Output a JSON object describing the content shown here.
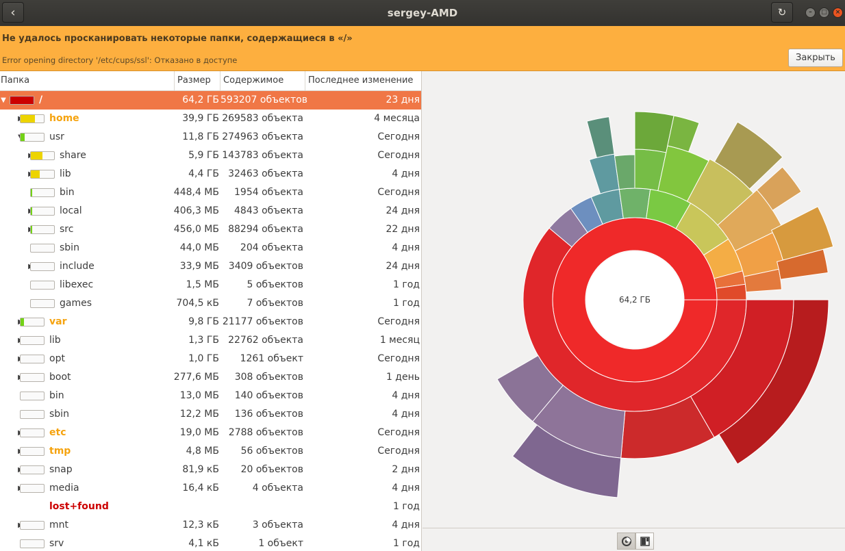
{
  "window": {
    "title": "sergey-AMD"
  },
  "infobar": {
    "message": "Не удалось просканировать некоторые папки, содержащиеся в «/»",
    "detail": "Error opening directory '/etc/cups/ssl': Отказано в доступе",
    "close_label": "Закрыть"
  },
  "columns": {
    "folder": "Папка",
    "size": "Размер",
    "contents": "Содержимое",
    "modified": "Последнее изменение"
  },
  "rows": [
    {
      "name": "/",
      "size": "64,2 ГБ",
      "contents": "593207 объектов",
      "modified": "23 дня",
      "level": 0,
      "expander": "open",
      "fill": 1.0,
      "color": "#cc0000",
      "bold": true,
      "text_color": "#ffffff",
      "selected": true
    },
    {
      "name": "home",
      "size": "39,9 ГБ",
      "contents": "269583 объекта",
      "modified": "4 месяца",
      "level": 1,
      "expander": "closed",
      "fill": 0.62,
      "color": "#edd400",
      "bold": true,
      "text_color": "#f5a30f"
    },
    {
      "name": "usr",
      "size": "11,8 ГБ",
      "contents": "274963 объекта",
      "modified": "Сегодня",
      "level": 1,
      "expander": "open",
      "fill": 0.18,
      "color": "#73d216",
      "bold": false,
      "text_color": "#3c3c3c"
    },
    {
      "name": "share",
      "size": "5,9 ГБ",
      "contents": "143783 объекта",
      "modified": "Сегодня",
      "level": 2,
      "expander": "closed",
      "fill": 0.5,
      "color": "#edd400",
      "bold": false,
      "text_color": "#3c3c3c"
    },
    {
      "name": "lib",
      "size": "4,4 ГБ",
      "contents": "32463 объекта",
      "modified": "4 дня",
      "level": 2,
      "expander": "closed",
      "fill": 0.37,
      "color": "#edd400",
      "bold": false,
      "text_color": "#3c3c3c"
    },
    {
      "name": "bin",
      "size": "448,4 МБ",
      "contents": "1954 объекта",
      "modified": "Сегодня",
      "level": 2,
      "expander": "none",
      "fill": 0.04,
      "color": "#73d216",
      "bold": false,
      "text_color": "#3c3c3c"
    },
    {
      "name": "local",
      "size": "406,3 МБ",
      "contents": "4843 объекта",
      "modified": "24 дня",
      "level": 2,
      "expander": "closed",
      "fill": 0.03,
      "color": "#73d216",
      "bold": false,
      "text_color": "#3c3c3c"
    },
    {
      "name": "src",
      "size": "456,0 МБ",
      "contents": "88294 объекта",
      "modified": "22 дня",
      "level": 2,
      "expander": "closed",
      "fill": 0.04,
      "color": "#73d216",
      "bold": false,
      "text_color": "#3c3c3c"
    },
    {
      "name": "sbin",
      "size": "44,0 МБ",
      "contents": "204 объекта",
      "modified": "4 дня",
      "level": 2,
      "expander": "none",
      "fill": 0.0,
      "color": "#73d216",
      "bold": false,
      "text_color": "#3c3c3c"
    },
    {
      "name": "include",
      "size": "33,9 МБ",
      "contents": "3409 объектов",
      "modified": "24 дня",
      "level": 2,
      "expander": "closed",
      "fill": 0.0,
      "color": "#73d216",
      "bold": false,
      "text_color": "#3c3c3c"
    },
    {
      "name": "libexec",
      "size": "1,5 МБ",
      "contents": "5 объектов",
      "modified": "1 год",
      "level": 2,
      "expander": "none",
      "fill": 0.0,
      "color": "#73d216",
      "bold": false,
      "text_color": "#3c3c3c"
    },
    {
      "name": "games",
      "size": "704,5 кБ",
      "contents": "7 объектов",
      "modified": "1 год",
      "level": 2,
      "expander": "none",
      "fill": 0.0,
      "color": "#73d216",
      "bold": false,
      "text_color": "#3c3c3c"
    },
    {
      "name": "var",
      "size": "9,8 ГБ",
      "contents": "21177 объектов",
      "modified": "Сегодня",
      "level": 1,
      "expander": "closed",
      "fill": 0.15,
      "color": "#73d216",
      "bold": true,
      "text_color": "#f5a30f"
    },
    {
      "name": "lib",
      "size": "1,3 ГБ",
      "contents": "22762 объекта",
      "modified": "1 месяц",
      "level": 1,
      "expander": "closed",
      "fill": 0.0,
      "color": "#73d216",
      "bold": false,
      "text_color": "#3c3c3c"
    },
    {
      "name": "opt",
      "size": "1,0 ГБ",
      "contents": "1261 объект",
      "modified": "Сегодня",
      "level": 1,
      "expander": "closed",
      "fill": 0.0,
      "color": "#73d216",
      "bold": false,
      "text_color": "#3c3c3c"
    },
    {
      "name": "boot",
      "size": "277,6 МБ",
      "contents": "308 объектов",
      "modified": "1 день",
      "level": 1,
      "expander": "closed",
      "fill": 0.0,
      "color": "#73d216",
      "bold": false,
      "text_color": "#3c3c3c"
    },
    {
      "name": "bin",
      "size": "13,0 МБ",
      "contents": "140 объектов",
      "modified": "4 дня",
      "level": 1,
      "expander": "none",
      "fill": 0.0,
      "color": "#73d216",
      "bold": false,
      "text_color": "#3c3c3c"
    },
    {
      "name": "sbin",
      "size": "12,2 МБ",
      "contents": "136 объектов",
      "modified": "4 дня",
      "level": 1,
      "expander": "none",
      "fill": 0.0,
      "color": "#73d216",
      "bold": false,
      "text_color": "#3c3c3c"
    },
    {
      "name": "etc",
      "size": "19,0 МБ",
      "contents": "2788 объектов",
      "modified": "Сегодня",
      "level": 1,
      "expander": "closed",
      "fill": 0.0,
      "color": "#73d216",
      "bold": true,
      "text_color": "#f5a30f"
    },
    {
      "name": "tmp",
      "size": "4,8 МБ",
      "contents": "56 объектов",
      "modified": "Сегодня",
      "level": 1,
      "expander": "closed",
      "fill": 0.0,
      "color": "#73d216",
      "bold": true,
      "text_color": "#f5a30f"
    },
    {
      "name": "snap",
      "size": "81,9 кБ",
      "contents": "20 объектов",
      "modified": "2 дня",
      "level": 1,
      "expander": "closed",
      "fill": 0.0,
      "color": "#73d216",
      "bold": false,
      "text_color": "#3c3c3c"
    },
    {
      "name": "media",
      "size": "16,4 кБ",
      "contents": "4 объекта",
      "modified": "4 дня",
      "level": 1,
      "expander": "closed",
      "fill": 0.0,
      "color": "#73d216",
      "bold": false,
      "text_color": "#3c3c3c"
    },
    {
      "name": "lost+found",
      "size": "",
      "contents": "",
      "modified": "1 год",
      "level": 1,
      "expander": "none",
      "fill": null,
      "color": "#73d216",
      "bold": true,
      "text_color": "#cc0000"
    },
    {
      "name": "mnt",
      "size": "12,3 кБ",
      "contents": "3 объекта",
      "modified": "4 дня",
      "level": 1,
      "expander": "closed",
      "fill": 0.0,
      "color": "#73d216",
      "bold": false,
      "text_color": "#3c3c3c"
    },
    {
      "name": "srv",
      "size": "4,1 кБ",
      "contents": "1 объект",
      "modified": "1 год",
      "level": 1,
      "expander": "none",
      "fill": 0.0,
      "color": "#73d216",
      "bold": false,
      "text_color": "#3c3c3c"
    }
  ],
  "chart": {
    "center_label": "64,2 ГБ"
  },
  "view_buttons": {
    "rings": "rings-chart-icon",
    "treemap": "treemap-chart-icon"
  }
}
